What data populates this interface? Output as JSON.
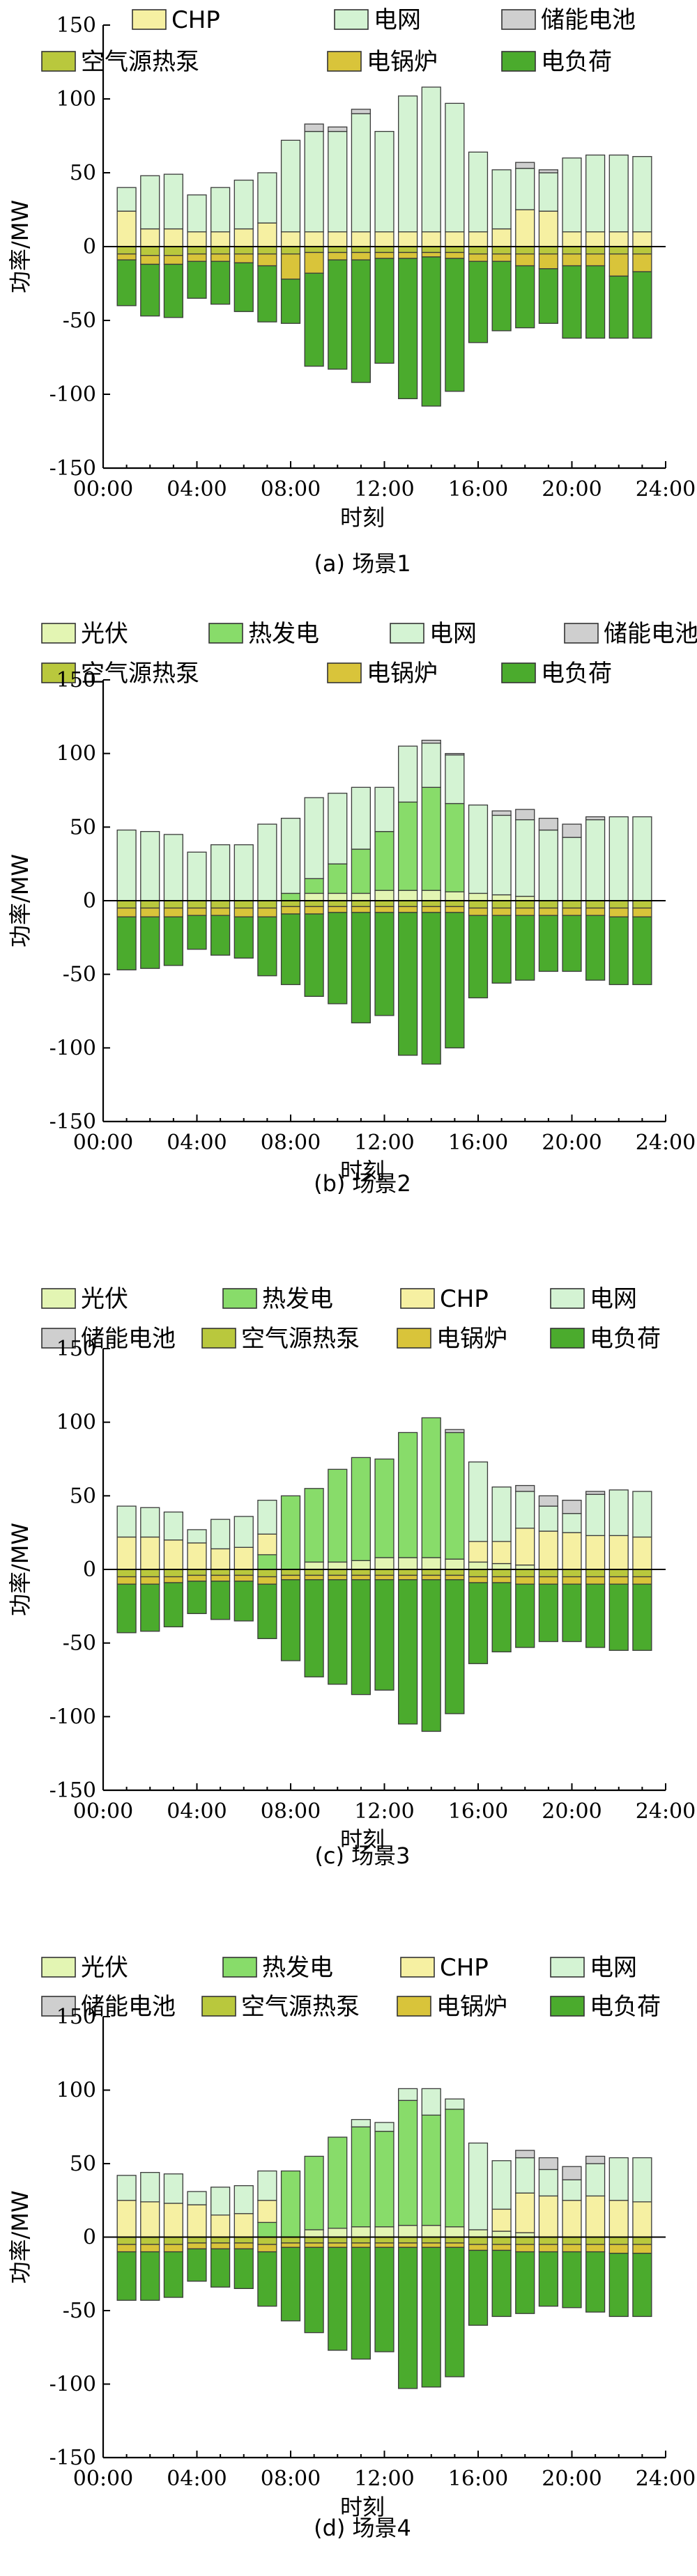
{
  "series_colors": {
    "光伏": "#e3f5b3",
    "热发电": "#88dc6a",
    "CHP": "#f6f0a2",
    "电网": "#d4f3d3",
    "储能电池": "#cfcfcf",
    "空气源热泵": "#b9c83d",
    "电锅炉": "#d9c43a",
    "电负荷": "#4bab2d"
  },
  "chart_data": [
    {
      "type": "bar",
      "stacked": true,
      "caption": "(a) 场景1",
      "xlabel": "时刻",
      "ylabel": "功率/MW",
      "ylim": [
        -150,
        150
      ],
      "yticks": [
        -150,
        -100,
        -50,
        0,
        50,
        100,
        150
      ],
      "xticks": [
        "00:00",
        "04:00",
        "08:00",
        "12:00",
        "16:00",
        "20:00",
        "24:00"
      ],
      "xlim": [
        0,
        24
      ],
      "legend_position": "top",
      "legend": [
        [
          "CHP",
          "电网",
          "储能电池"
        ],
        [
          "空气源热泵",
          "电锅炉",
          "电负荷"
        ]
      ],
      "x": [
        1,
        2,
        3,
        4,
        5,
        6,
        7,
        8,
        9,
        10,
        11,
        12,
        13,
        14,
        15,
        16,
        17,
        18,
        19,
        20,
        21,
        22,
        23
      ],
      "series": [
        {
          "name": "CHP",
          "sign": "pos",
          "values": [
            24,
            12,
            12,
            10,
            10,
            12,
            16,
            10,
            10,
            10,
            10,
            10,
            10,
            10,
            10,
            10,
            12,
            25,
            24,
            10,
            10,
            10,
            10
          ]
        },
        {
          "name": "电网",
          "sign": "pos",
          "values": [
            16,
            36,
            37,
            25,
            30,
            33,
            34,
            62,
            68,
            68,
            80,
            68,
            92,
            98,
            87,
            54,
            40,
            28,
            26,
            50,
            52,
            52,
            51
          ]
        },
        {
          "name": "储能电池",
          "sign": "pos",
          "values": [
            0,
            0,
            0,
            0,
            0,
            0,
            0,
            0,
            5,
            3,
            3,
            0,
            0,
            0,
            0,
            0,
            0,
            4,
            2,
            0,
            0,
            0,
            0
          ]
        },
        {
          "name": "空气源热泵",
          "sign": "neg",
          "values": [
            -5,
            -6,
            -6,
            -5,
            -5,
            -5,
            -5,
            -5,
            -4,
            -4,
            -4,
            -4,
            -4,
            -4,
            -4,
            -5,
            -5,
            -5,
            -5,
            -5,
            -5,
            -5,
            -5
          ]
        },
        {
          "name": "电锅炉",
          "sign": "neg",
          "values": [
            -4,
            -6,
            -6,
            -5,
            -5,
            -6,
            -8,
            -17,
            -14,
            -5,
            -5,
            -4,
            -4,
            -3,
            -4,
            -5,
            -5,
            -8,
            -10,
            -8,
            -8,
            -15,
            -12
          ]
        },
        {
          "name": "电负荷",
          "sign": "neg",
          "values": [
            -31,
            -35,
            -36,
            -25,
            -29,
            -33,
            -38,
            -30,
            -63,
            -74,
            -83,
            -71,
            -95,
            -101,
            -90,
            -55,
            -47,
            -42,
            -37,
            -49,
            -49,
            -42,
            -45
          ]
        }
      ]
    },
    {
      "type": "bar",
      "stacked": true,
      "caption": "(b) 场景2",
      "xlabel": "时刻",
      "ylabel": "功率/MW",
      "ylim": [
        -150,
        150
      ],
      "yticks": [
        -150,
        -100,
        -50,
        0,
        50,
        100,
        150
      ],
      "xticks": [
        "00:00",
        "04:00",
        "08:00",
        "12:00",
        "16:00",
        "20:00",
        "24:00"
      ],
      "xlim": [
        0,
        24
      ],
      "legend_position": "top",
      "legend": [
        [
          "光伏",
          "热发电",
          "电网",
          "储能电池"
        ],
        [
          "空气源热泵",
          "电锅炉",
          "电负荷"
        ]
      ],
      "x": [
        1,
        2,
        3,
        4,
        5,
        6,
        7,
        8,
        9,
        10,
        11,
        12,
        13,
        14,
        15,
        16,
        17,
        18,
        19,
        20,
        21,
        22,
        23
      ],
      "series": [
        {
          "name": "光伏",
          "sign": "pos",
          "values": [
            0,
            0,
            0,
            0,
            0,
            0,
            0,
            0,
            5,
            5,
            5,
            7,
            7,
            7,
            6,
            5,
            4,
            3,
            0,
            0,
            0,
            0,
            0
          ]
        },
        {
          "name": "热发电",
          "sign": "pos",
          "values": [
            0,
            0,
            0,
            0,
            0,
            0,
            0,
            5,
            10,
            20,
            30,
            40,
            60,
            70,
            60,
            0,
            0,
            0,
            0,
            0,
            0,
            0,
            0
          ]
        },
        {
          "name": "电网",
          "sign": "pos",
          "values": [
            48,
            47,
            45,
            33,
            38,
            38,
            52,
            51,
            55,
            48,
            42,
            30,
            38,
            30,
            33,
            60,
            54,
            52,
            48,
            43,
            55,
            57,
            57
          ]
        },
        {
          "name": "储能电池",
          "sign": "pos",
          "values": [
            0,
            0,
            0,
            0,
            0,
            0,
            0,
            0,
            0,
            0,
            0,
            0,
            0,
            2,
            1,
            0,
            3,
            7,
            8,
            9,
            2,
            0,
            0
          ]
        },
        {
          "name": "空气源热泵",
          "sign": "neg",
          "values": [
            -5,
            -5,
            -5,
            -5,
            -5,
            -5,
            -5,
            -4,
            -4,
            -4,
            -4,
            -4,
            -4,
            -4,
            -4,
            -5,
            -5,
            -5,
            -5,
            -5,
            -5,
            -5,
            -5
          ]
        },
        {
          "name": "电锅炉",
          "sign": "neg",
          "values": [
            -6,
            -6,
            -6,
            -5,
            -5,
            -6,
            -6,
            -5,
            -5,
            -4,
            -4,
            -4,
            -4,
            -4,
            -4,
            -5,
            -5,
            -5,
            -5,
            -5,
            -5,
            -6,
            -6
          ]
        },
        {
          "name": "电负荷",
          "sign": "neg",
          "values": [
            -36,
            -35,
            -33,
            -23,
            -27,
            -28,
            -40,
            -48,
            -56,
            -62,
            -75,
            -70,
            -97,
            -103,
            -92,
            -56,
            -46,
            -44,
            -38,
            -38,
            -44,
            -46,
            -46
          ]
        }
      ]
    },
    {
      "type": "bar",
      "stacked": true,
      "caption": "(c) 场景3",
      "xlabel": "时刻",
      "ylabel": "功率/MW",
      "ylim": [
        -150,
        150
      ],
      "yticks": [
        -150,
        -100,
        -50,
        0,
        50,
        100,
        150
      ],
      "xticks": [
        "00:00",
        "04:00",
        "08:00",
        "12:00",
        "16:00",
        "20:00",
        "24:00"
      ],
      "xlim": [
        0,
        24
      ],
      "legend_position": "top",
      "legend": [
        [
          "光伏",
          "热发电",
          "CHP",
          "电网"
        ],
        [
          "储能电池",
          "空气源热泵",
          "电锅炉",
          "电负荷"
        ]
      ],
      "x": [
        1,
        2,
        3,
        4,
        5,
        6,
        7,
        8,
        9,
        10,
        11,
        12,
        13,
        14,
        15,
        16,
        17,
        18,
        19,
        20,
        21,
        22,
        23
      ],
      "series": [
        {
          "name": "光伏",
          "sign": "pos",
          "values": [
            0,
            0,
            0,
            0,
            0,
            0,
            0,
            0,
            5,
            5,
            6,
            8,
            8,
            8,
            7,
            5,
            4,
            3,
            0,
            0,
            0,
            0,
            0
          ]
        },
        {
          "name": "热发电",
          "sign": "pos",
          "values": [
            0,
            0,
            0,
            0,
            0,
            0,
            10,
            50,
            50,
            63,
            70,
            67,
            85,
            95,
            86,
            0,
            0,
            0,
            0,
            0,
            0,
            0,
            0
          ]
        },
        {
          "name": "CHP",
          "sign": "pos",
          "values": [
            22,
            22,
            20,
            18,
            14,
            15,
            14,
            0,
            0,
            0,
            0,
            0,
            0,
            0,
            0,
            14,
            15,
            25,
            26,
            25,
            23,
            23,
            22
          ]
        },
        {
          "name": "电网",
          "sign": "pos",
          "values": [
            21,
            20,
            19,
            9,
            20,
            21,
            23,
            0,
            0,
            0,
            0,
            0,
            0,
            0,
            0,
            54,
            37,
            25,
            17,
            13,
            28,
            31,
            31
          ]
        },
        {
          "name": "储能电池",
          "sign": "pos",
          "values": [
            0,
            0,
            0,
            0,
            0,
            0,
            0,
            0,
            0,
            0,
            0,
            0,
            0,
            0,
            2,
            0,
            0,
            4,
            7,
            9,
            2,
            0,
            0
          ]
        },
        {
          "name": "空气源热泵",
          "sign": "neg",
          "values": [
            -5,
            -5,
            -5,
            -4,
            -4,
            -4,
            -5,
            -4,
            -4,
            -4,
            -4,
            -4,
            -4,
            -4,
            -4,
            -5,
            -5,
            -5,
            -5,
            -5,
            -5,
            -5,
            -5
          ]
        },
        {
          "name": "电锅炉",
          "sign": "neg",
          "values": [
            -5,
            -5,
            -4,
            -4,
            -4,
            -4,
            -5,
            -3,
            -3,
            -3,
            -3,
            -3,
            -3,
            -3,
            -3,
            -4,
            -4,
            -5,
            -5,
            -5,
            -5,
            -5,
            -5
          ]
        },
        {
          "name": "电负荷",
          "sign": "neg",
          "values": [
            -33,
            -32,
            -30,
            -22,
            -26,
            -27,
            -37,
            -55,
            -66,
            -71,
            -78,
            -75,
            -98,
            -103,
            -91,
            -55,
            -47,
            -43,
            -39,
            -39,
            -43,
            -45,
            -45
          ]
        }
      ]
    },
    {
      "type": "bar",
      "stacked": true,
      "caption": "(d) 场景4",
      "xlabel": "时刻",
      "ylabel": "功率/MW",
      "ylim": [
        -150,
        150
      ],
      "yticks": [
        -150,
        -100,
        -50,
        0,
        50,
        100,
        150
      ],
      "xticks": [
        "00:00",
        "04:00",
        "08:00",
        "12:00",
        "16:00",
        "20:00",
        "24:00"
      ],
      "xlim": [
        0,
        24
      ],
      "legend_position": "top",
      "legend": [
        [
          "光伏",
          "热发电",
          "CHP",
          "电网"
        ],
        [
          "储能电池",
          "空气源热泵",
          "电锅炉",
          "电负荷"
        ]
      ],
      "x": [
        1,
        2,
        3,
        4,
        5,
        6,
        7,
        8,
        9,
        10,
        11,
        12,
        13,
        14,
        15,
        16,
        17,
        18,
        19,
        20,
        21,
        22,
        23
      ],
      "series": [
        {
          "name": "光伏",
          "sign": "pos",
          "values": [
            0,
            0,
            0,
            0,
            0,
            0,
            0,
            0,
            5,
            6,
            7,
            7,
            8,
            8,
            7,
            5,
            4,
            3,
            0,
            0,
            0,
            0,
            0
          ]
        },
        {
          "name": "热发电",
          "sign": "pos",
          "values": [
            0,
            0,
            0,
            0,
            0,
            0,
            10,
            45,
            50,
            62,
            68,
            65,
            85,
            75,
            80,
            0,
            0,
            0,
            0,
            0,
            0,
            0,
            0
          ]
        },
        {
          "name": "CHP",
          "sign": "pos",
          "values": [
            25,
            24,
            23,
            22,
            15,
            16,
            15,
            0,
            0,
            0,
            0,
            0,
            0,
            0,
            0,
            0,
            15,
            27,
            28,
            25,
            28,
            25,
            24
          ]
        },
        {
          "name": "电网",
          "sign": "pos",
          "values": [
            17,
            20,
            20,
            9,
            19,
            19,
            20,
            0,
            0,
            0,
            5,
            6,
            8,
            18,
            7,
            59,
            33,
            24,
            18,
            14,
            22,
            29,
            30
          ]
        },
        {
          "name": "储能电池",
          "sign": "pos",
          "values": [
            0,
            0,
            0,
            0,
            0,
            0,
            0,
            0,
            0,
            0,
            0,
            0,
            0,
            0,
            0,
            0,
            0,
            5,
            8,
            9,
            5,
            0,
            0
          ]
        },
        {
          "name": "空气源热泵",
          "sign": "neg",
          "values": [
            -5,
            -5,
            -5,
            -4,
            -4,
            -4,
            -5,
            -4,
            -4,
            -4,
            -4,
            -4,
            -4,
            -4,
            -4,
            -5,
            -5,
            -5,
            -5,
            -5,
            -5,
            -5,
            -5
          ]
        },
        {
          "name": "电锅炉",
          "sign": "neg",
          "values": [
            -5,
            -5,
            -5,
            -4,
            -4,
            -4,
            -5,
            -3,
            -3,
            -3,
            -3,
            -3,
            -3,
            -3,
            -3,
            -4,
            -4,
            -5,
            -5,
            -5,
            -5,
            -6,
            -6
          ]
        },
        {
          "name": "电负荷",
          "sign": "neg",
          "values": [
            -33,
            -33,
            -31,
            -22,
            -26,
            -27,
            -37,
            -50,
            -58,
            -70,
            -76,
            -71,
            -96,
            -95,
            -88,
            -51,
            -45,
            -42,
            -37,
            -38,
            -41,
            -43,
            -43
          ]
        }
      ]
    }
  ]
}
